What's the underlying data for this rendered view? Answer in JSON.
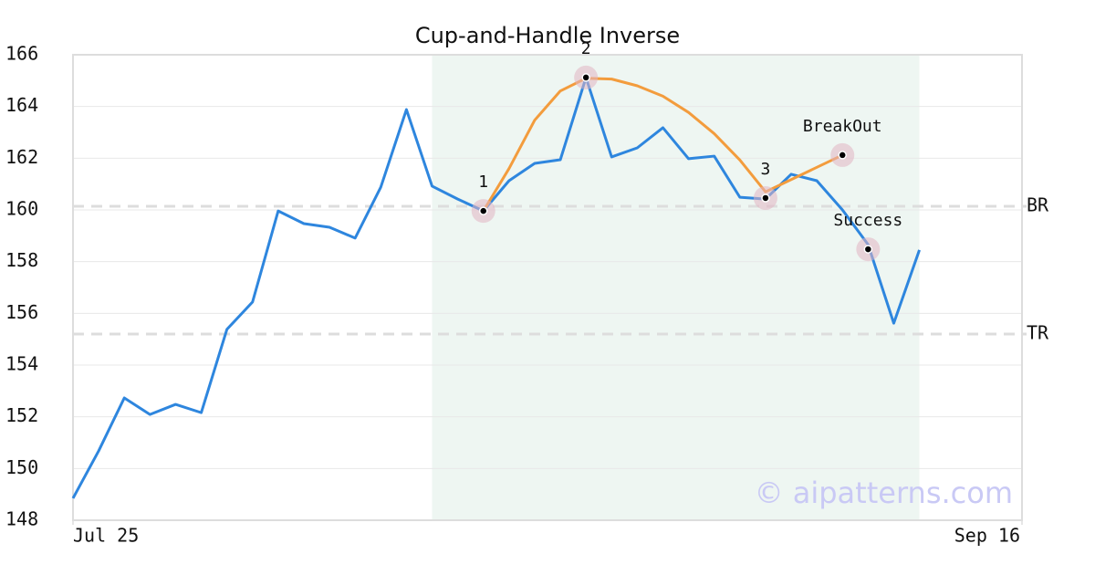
{
  "chart_data": {
    "type": "line",
    "title": "Cup-and-Handle Inverse",
    "x": [
      0,
      1,
      2,
      3,
      4,
      5,
      6,
      7,
      8,
      9,
      10,
      11,
      12,
      13,
      14,
      15,
      16,
      17,
      18,
      19,
      20,
      21,
      22,
      23,
      24,
      25,
      26,
      27,
      28,
      29,
      30,
      31,
      32,
      33
    ],
    "xlim": [
      0,
      37
    ],
    "xticks": [
      {
        "value": 0,
        "label": "Jul 25"
      },
      {
        "value": 37,
        "label": "Sep 16"
      }
    ],
    "ylim": [
      148,
      166
    ],
    "yticks": [
      148,
      150,
      152,
      154,
      156,
      158,
      160,
      162,
      164,
      166
    ],
    "grid": true,
    "series": [
      {
        "color": "#2e86de",
        "values": [
          148.85,
          150.68,
          152.73,
          152.09,
          152.48,
          152.16,
          155.38,
          156.44,
          159.96,
          159.47,
          159.33,
          158.91,
          160.88,
          163.88,
          160.92,
          160.42,
          159.96,
          161.13,
          161.8,
          161.94,
          165.12,
          162.05,
          162.4,
          163.18,
          161.98,
          162.08,
          160.49,
          160.42,
          161.38,
          161.13,
          160.0,
          158.66,
          155.62,
          158.45
        ]
      },
      {
        "color": "#f39c3d",
        "x": [
          16,
          17,
          18,
          19,
          20,
          21,
          22,
          23,
          24,
          25,
          26,
          27,
          30
        ],
        "values": [
          159.96,
          161.6,
          163.47,
          164.6,
          165.09,
          165.06,
          164.8,
          164.4,
          163.77,
          162.95,
          161.93,
          160.7,
          162.12
        ]
      }
    ],
    "highlight": [
      14,
      33
    ],
    "hlines": [
      {
        "label": "BR",
        "value": 160.14
      },
      {
        "label": "TR",
        "value": 155.2
      }
    ],
    "points": [
      {
        "label": "1",
        "x": 16,
        "y": 159.96
      },
      {
        "label": "2",
        "x": 20,
        "y": 165.12
      },
      {
        "label": "3",
        "x": 27,
        "y": 160.46
      },
      {
        "label": "BreakOut",
        "x": 30,
        "y": 162.12
      },
      {
        "label": "Success",
        "x": 31,
        "y": 158.48
      }
    ],
    "watermark": "© aipatterns.com"
  }
}
